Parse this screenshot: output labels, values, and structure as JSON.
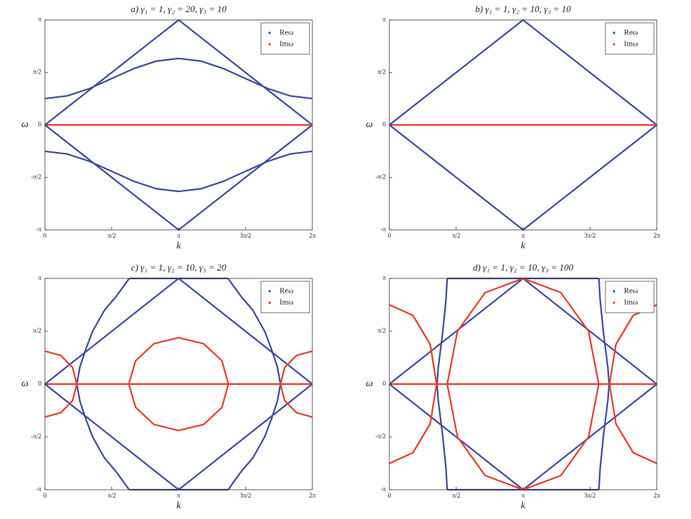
{
  "chart_data": [
    {
      "type": "line",
      "title": "a) γ₁ = 1, γ₂ = 20, γ₃ = 10",
      "xlabel": "k",
      "ylabel": "ω",
      "legend": "upper right",
      "xlim": [
        0,
        6.2832
      ],
      "ylim": [
        -3.1416,
        3.1416
      ],
      "xticks": [
        0,
        {
          "value": 1.5708,
          "label": "π/2"
        },
        {
          "value": 3.1416,
          "label": "π"
        },
        {
          "value": 4.7124,
          "label": "3π/2"
        },
        {
          "value": 6.2832,
          "label": "2π"
        }
      ],
      "yticks": [
        {
          "value": -3.1416,
          "label": "-π"
        },
        {
          "value": -1.5708,
          "label": "-π/2"
        },
        0,
        {
          "value": 1.5708,
          "label": "π/2"
        },
        {
          "value": 3.1416,
          "label": "π"
        }
      ],
      "series": [
        {
          "name": "Reω",
          "color": "#3b4a9c",
          "x": [
            0,
            3.1416,
            6.2832,
            null,
            0,
            3.1416,
            6.2832,
            null,
            0,
            0.5236,
            1.0472,
            1.5708,
            2.0944,
            2.618,
            3.1416,
            3.6652,
            4.1888,
            4.7124,
            5.236,
            5.7596,
            6.2832,
            null,
            0,
            0.5236,
            1.0472,
            1.5708,
            2.0944,
            2.618,
            3.1416,
            3.6652,
            4.1888,
            4.7124,
            5.236,
            5.7596,
            6.2832
          ],
          "values": [
            0,
            3.1416,
            0,
            null,
            0,
            -3.1416,
            0,
            null,
            0.79,
            0.87,
            1.09,
            1.39,
            1.69,
            1.91,
            1.99,
            1.91,
            1.69,
            1.39,
            1.09,
            0.87,
            0.79,
            null,
            -0.79,
            -0.87,
            -1.09,
            -1.39,
            -1.69,
            -1.91,
            -1.99,
            -1.91,
            -1.69,
            -1.39,
            -1.09,
            -0.87,
            -0.79
          ]
        },
        {
          "name": "Imω",
          "color": "#e8392c",
          "x": [
            0,
            6.2832
          ],
          "values": [
            0,
            0
          ]
        }
      ]
    },
    {
      "type": "line",
      "title": "b) γ₁ = 1, γ₂ = 10, γ₃ = 10",
      "xlabel": "k",
      "ylabel": "ω",
      "legend": "upper right",
      "xlim": [
        0,
        6.2832
      ],
      "ylim": [
        -3.1416,
        3.1416
      ],
      "xticks": [
        0,
        {
          "value": 1.5708,
          "label": "π/2"
        },
        {
          "value": 3.1416,
          "label": "π"
        },
        {
          "value": 4.7124,
          "label": "3π/2"
        },
        {
          "value": 6.2832,
          "label": "2π"
        }
      ],
      "yticks": [
        {
          "value": -3.1416,
          "label": "-π"
        },
        {
          "value": -1.5708,
          "label": "-π/2"
        },
        0,
        {
          "value": 1.5708,
          "label": "π/2"
        },
        {
          "value": 3.1416,
          "label": "π"
        }
      ],
      "series": [
        {
          "name": "Reω",
          "color": "#3b4a9c",
          "x": [
            0,
            3.1416,
            6.2832,
            null,
            0,
            3.1416,
            6.2832
          ],
          "values": [
            0,
            3.1416,
            0,
            null,
            0,
            -3.1416,
            0
          ]
        },
        {
          "name": "Imω",
          "color": "#e8392c",
          "x": [
            0,
            6.2832
          ],
          "values": [
            0,
            0
          ]
        }
      ]
    },
    {
      "type": "line",
      "title": "c) γ₁ = 1, γ₂ = 10, γ₃ = 20",
      "xlabel": "k",
      "ylabel": "ω",
      "legend": "upper right",
      "xlim": [
        0,
        6.2832
      ],
      "ylim": [
        -3.1416,
        3.1416
      ],
      "xticks": [
        0,
        {
          "value": 1.5708,
          "label": "π/2"
        },
        {
          "value": 3.1416,
          "label": "π"
        },
        {
          "value": 4.7124,
          "label": "3π/2"
        },
        {
          "value": 6.2832,
          "label": "2π"
        }
      ],
      "yticks": [
        {
          "value": -3.1416,
          "label": "-π"
        },
        {
          "value": -1.5708,
          "label": "-π/2"
        },
        0,
        {
          "value": 1.5708,
          "label": "π/2"
        },
        {
          "value": 3.1416,
          "label": "π"
        }
      ],
      "series": [
        {
          "name": "Reω",
          "color": "#3b4a9c",
          "x": [
            0,
            3.1416,
            6.2832,
            null,
            0,
            3.1416,
            6.2832,
            null,
            1.98,
            1.9,
            1.67,
            1.4,
            1.12,
            0.95,
            0.82,
            0.75,
            0.82,
            0.95,
            1.12,
            1.4,
            1.67,
            1.9,
            1.98,
            null,
            4.3032,
            4.3832,
            4.6132,
            4.8832,
            5.1632,
            5.3332,
            5.4632,
            5.5332,
            5.4632,
            5.3332,
            5.1632,
            4.8832,
            4.6132,
            4.3832,
            4.3032,
            null,
            1.98,
            4.3032,
            null,
            1.98,
            4.3032
          ],
          "values": [
            0,
            3.1416,
            0,
            null,
            0,
            -3.1416,
            0,
            null,
            -3.1416,
            -3.0,
            -2.6,
            -2.2,
            -1.57,
            -1.0,
            -0.5,
            0,
            0.5,
            1.0,
            1.57,
            2.2,
            2.6,
            3.0,
            3.1416,
            null,
            -3.1416,
            -3.0,
            -2.6,
            -2.2,
            -1.57,
            -1.0,
            -0.5,
            0,
            0.5,
            1.0,
            1.57,
            2.2,
            2.6,
            3.0,
            3.1416,
            null,
            3.1416,
            3.1416,
            null,
            -3.1416,
            -3.1416
          ]
        },
        {
          "name": "Imω",
          "color": "#e8392c",
          "x": [
            0,
            6.2832,
            null,
            1.97,
            2.13,
            2.56,
            3.14,
            3.73,
            4.16,
            4.31,
            null,
            1.97,
            2.13,
            2.56,
            3.14,
            3.73,
            4.16,
            4.31,
            null,
            0,
            0.375,
            0.65,
            0.75,
            0.65,
            0.375,
            0,
            null,
            6.2832,
            5.9082,
            5.6332,
            5.5332,
            5.6332,
            5.9082,
            6.2832
          ],
          "values": [
            0,
            0,
            null,
            0,
            0.69,
            1.2,
            1.38,
            1.2,
            0.69,
            0,
            null,
            0,
            -0.69,
            -1.2,
            -1.38,
            -1.2,
            -0.69,
            0,
            null,
            0.98,
            0.85,
            0.49,
            0,
            -0.49,
            -0.85,
            -0.98,
            null,
            0.98,
            0.85,
            0.49,
            0,
            -0.49,
            -0.85,
            -0.98
          ]
        }
      ]
    },
    {
      "type": "line",
      "title": "d) γ₁ = 1, γ₂ = 10, γ₃ = 100",
      "xlabel": "k",
      "ylabel": "ω",
      "legend": "upper right",
      "xlim": [
        0,
        6.2832
      ],
      "ylim": [
        -3.1416,
        3.1416
      ],
      "xticks": [
        0,
        {
          "value": 1.5708,
          "label": "π/2"
        },
        {
          "value": 3.1416,
          "label": "π"
        },
        {
          "value": 4.7124,
          "label": "3π/2"
        },
        {
          "value": 6.2832,
          "label": "2π"
        }
      ],
      "yticks": [
        {
          "value": -3.1416,
          "label": "-π"
        },
        {
          "value": -1.5708,
          "label": "-π/2"
        },
        0,
        {
          "value": 1.5708,
          "label": "π/2"
        },
        {
          "value": 3.1416,
          "label": "π"
        }
      ],
      "series": [
        {
          "name": "Reω",
          "color": "#3b4a9c",
          "x": [
            0,
            3.1416,
            6.2832,
            null,
            0,
            3.1416,
            6.2832,
            null,
            1.36,
            1.33,
            1.25,
            1.15,
            1.12,
            1.15,
            1.25,
            1.33,
            1.36,
            null,
            4.9232,
            4.9532,
            5.0332,
            5.1332,
            5.1632,
            5.1332,
            5.0332,
            4.9532,
            4.9232,
            null,
            1.36,
            4.9232,
            null,
            1.36,
            4.9232
          ],
          "values": [
            0,
            3.1416,
            0,
            null,
            0,
            -3.1416,
            0,
            null,
            3.1416,
            2.5,
            1.5,
            0.5,
            0,
            -0.5,
            -1.5,
            -2.5,
            -3.1416,
            null,
            3.1416,
            2.5,
            1.5,
            0.5,
            0,
            -0.5,
            -1.5,
            -2.5,
            -3.1416,
            null,
            3.1416,
            3.1416,
            null,
            -3.1416,
            -3.1416
          ]
        },
        {
          "name": "Imω",
          "color": "#e8392c",
          "x": [
            0,
            6.2832,
            null,
            4.92,
            4.68,
            4.03,
            3.14,
            2.25,
            1.6,
            1.36,
            null,
            4.92,
            4.68,
            4.03,
            3.14,
            2.25,
            1.6,
            1.36,
            null,
            0,
            0.555,
            0.96,
            1.11,
            0.96,
            0.555,
            0,
            null,
            6.2832,
            5.7282,
            5.3232,
            5.1732,
            5.3232,
            5.7282,
            6.2832
          ],
          "values": [
            0,
            0,
            null,
            0,
            1.57,
            2.72,
            3.14,
            2.72,
            1.57,
            0,
            null,
            0,
            -1.57,
            -2.72,
            -3.14,
            -2.72,
            -1.57,
            0,
            null,
            2.36,
            2.04,
            1.18,
            0,
            -1.18,
            -2.04,
            -2.36,
            null,
            2.36,
            2.04,
            1.18,
            0,
            -1.18,
            -2.04,
            -2.36
          ]
        }
      ]
    }
  ]
}
